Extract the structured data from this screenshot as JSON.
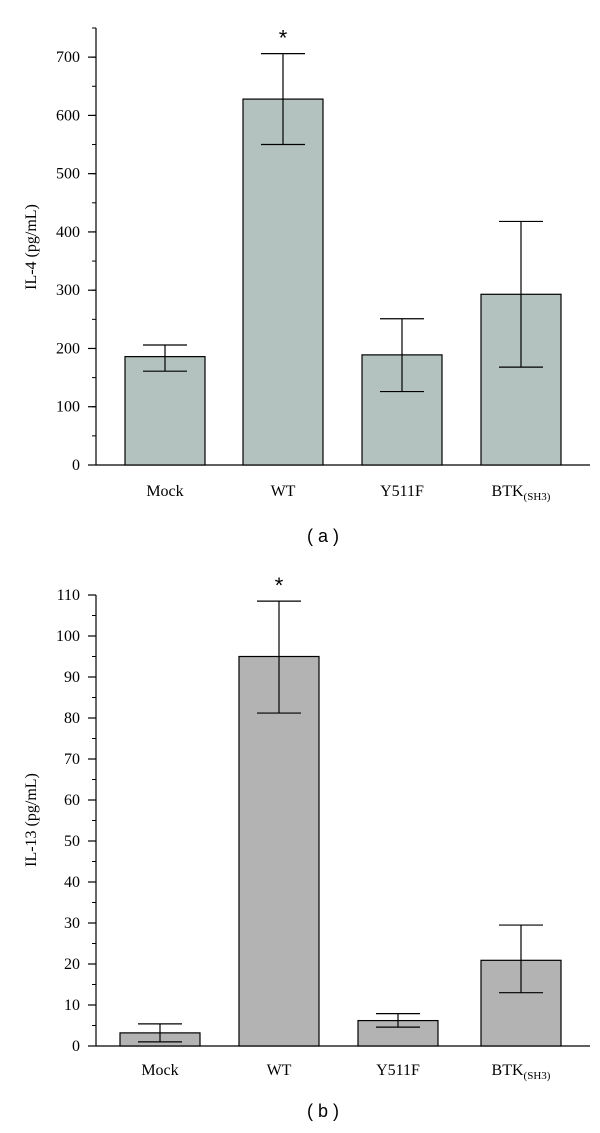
{
  "chart_data": [
    {
      "type": "bar",
      "panel_label": "( a )",
      "ylabel": "IL-4 (pg/mL)",
      "ylim": [
        0,
        750
      ],
      "ytick_step": 100,
      "yminor_step": 50,
      "bar_color": "#b3c2bf",
      "categories": [
        {
          "main": "Mock",
          "sub": ""
        },
        {
          "main": "WT",
          "sub": ""
        },
        {
          "main": "Y511F",
          "sub": ""
        },
        {
          "main": "BTK",
          "sub": "(SH3)"
        }
      ],
      "values": [
        186,
        628,
        189,
        293
      ],
      "error_low": [
        161,
        550,
        126,
        168
      ],
      "error_high": [
        206,
        706,
        251,
        418
      ],
      "significance": [
        "",
        "*",
        "",
        ""
      ]
    },
    {
      "type": "bar",
      "panel_label": "( b )",
      "ylabel": "IL-13 (pg/mL)",
      "ylim": [
        0,
        110
      ],
      "ytick_step": 10,
      "yminor_step": 5,
      "bar_color": "#b3b3b3",
      "categories": [
        {
          "main": "Mock",
          "sub": ""
        },
        {
          "main": "WT",
          "sub": ""
        },
        {
          "main": "Y511F",
          "sub": ""
        },
        {
          "main": "BTK",
          "sub": "(SH3)"
        }
      ],
      "values": [
        3.2,
        95,
        6.2,
        20.9
      ],
      "error_low": [
        1.0,
        81.2,
        4.6,
        13.0
      ],
      "error_high": [
        5.4,
        108.5,
        7.9,
        29.5
      ],
      "significance": [
        "",
        "*",
        "",
        ""
      ]
    }
  ]
}
